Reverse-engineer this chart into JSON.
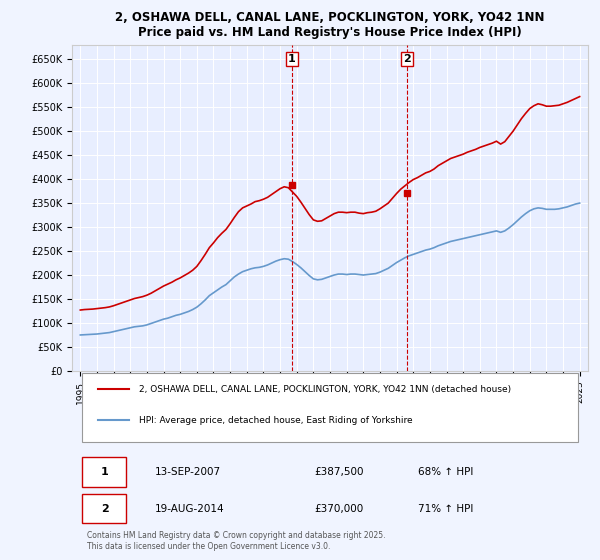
{
  "title": "2, OSHAWA DELL, CANAL LANE, POCKLINGTON, YORK, YO42 1NN",
  "subtitle": "Price paid vs. HM Land Registry's House Price Index (HPI)",
  "background_color": "#f0f4ff",
  "plot_bg_color": "#e8eeff",
  "ylabel": "",
  "ylim": [
    0,
    680000
  ],
  "yticks": [
    0,
    50000,
    100000,
    150000,
    200000,
    250000,
    300000,
    350000,
    400000,
    450000,
    500000,
    550000,
    600000,
    650000
  ],
  "sale1_date": 2007.7,
  "sale1_price": 387500,
  "sale1_label": "1",
  "sale2_date": 2014.63,
  "sale2_price": 370000,
  "sale2_label": "2",
  "legend_property": "2, OSHAWA DELL, CANAL LANE, POCKLINGTON, YORK, YO42 1NN (detached house)",
  "legend_hpi": "HPI: Average price, detached house, East Riding of Yorkshire",
  "table_row1": [
    "1",
    "13-SEP-2007",
    "£387,500",
    "68% ↑ HPI"
  ],
  "table_row2": [
    "2",
    "19-AUG-2014",
    "£370,000",
    "71% ↑ HPI"
  ],
  "footer": "Contains HM Land Registry data © Crown copyright and database right 2025.\nThis data is licensed under the Open Government Licence v3.0.",
  "property_color": "#cc0000",
  "hpi_color": "#6699cc",
  "dashed_line_color": "#cc0000",
  "hpi_data": {
    "years": [
      1995.0,
      1995.25,
      1995.5,
      1995.75,
      1996.0,
      1996.25,
      1996.5,
      1996.75,
      1997.0,
      1997.25,
      1997.5,
      1997.75,
      1998.0,
      1998.25,
      1998.5,
      1998.75,
      1999.0,
      1999.25,
      1999.5,
      1999.75,
      2000.0,
      2000.25,
      2000.5,
      2000.75,
      2001.0,
      2001.25,
      2001.5,
      2001.75,
      2002.0,
      2002.25,
      2002.5,
      2002.75,
      2003.0,
      2003.25,
      2003.5,
      2003.75,
      2004.0,
      2004.25,
      2004.5,
      2004.75,
      2005.0,
      2005.25,
      2005.5,
      2005.75,
      2006.0,
      2006.25,
      2006.5,
      2006.75,
      2007.0,
      2007.25,
      2007.5,
      2007.75,
      2008.0,
      2008.25,
      2008.5,
      2008.75,
      2009.0,
      2009.25,
      2009.5,
      2009.75,
      2010.0,
      2010.25,
      2010.5,
      2010.75,
      2011.0,
      2011.25,
      2011.5,
      2011.75,
      2012.0,
      2012.25,
      2012.5,
      2012.75,
      2013.0,
      2013.25,
      2013.5,
      2013.75,
      2014.0,
      2014.25,
      2014.5,
      2014.75,
      2015.0,
      2015.25,
      2015.5,
      2015.75,
      2016.0,
      2016.25,
      2016.5,
      2016.75,
      2017.0,
      2017.25,
      2017.5,
      2017.75,
      2018.0,
      2018.25,
      2018.5,
      2018.75,
      2019.0,
      2019.25,
      2019.5,
      2019.75,
      2020.0,
      2020.25,
      2020.5,
      2020.75,
      2021.0,
      2021.25,
      2021.5,
      2021.75,
      2022.0,
      2022.25,
      2022.5,
      2022.75,
      2023.0,
      2023.25,
      2023.5,
      2023.75,
      2024.0,
      2024.25,
      2024.5,
      2024.75,
      2025.0
    ],
    "values": [
      75000,
      75500,
      76000,
      76500,
      77000,
      78000,
      79000,
      80000,
      82000,
      84000,
      86000,
      88000,
      90000,
      92000,
      93000,
      94000,
      96000,
      99000,
      102000,
      105000,
      108000,
      110000,
      113000,
      116000,
      118000,
      121000,
      124000,
      128000,
      133000,
      140000,
      148000,
      157000,
      163000,
      169000,
      175000,
      180000,
      188000,
      196000,
      202000,
      207000,
      210000,
      213000,
      215000,
      216000,
      218000,
      221000,
      225000,
      229000,
      232000,
      234000,
      233000,
      228000,
      222000,
      215000,
      207000,
      199000,
      192000,
      190000,
      191000,
      194000,
      197000,
      200000,
      202000,
      202000,
      201000,
      202000,
      202000,
      201000,
      200000,
      201000,
      202000,
      203000,
      206000,
      210000,
      214000,
      220000,
      226000,
      231000,
      236000,
      240000,
      243000,
      246000,
      249000,
      252000,
      254000,
      257000,
      261000,
      264000,
      267000,
      270000,
      272000,
      274000,
      276000,
      278000,
      280000,
      282000,
      284000,
      286000,
      288000,
      290000,
      292000,
      289000,
      292000,
      298000,
      305000,
      313000,
      321000,
      328000,
      334000,
      338000,
      340000,
      339000,
      337000,
      337000,
      337000,
      338000,
      340000,
      342000,
      345000,
      348000,
      350000
    ]
  },
  "property_data": {
    "years": [
      1995.0,
      1995.25,
      1995.5,
      1995.75,
      1996.0,
      1996.25,
      1996.5,
      1996.75,
      1997.0,
      1997.25,
      1997.5,
      1997.75,
      1998.0,
      1998.25,
      1998.5,
      1998.75,
      1999.0,
      1999.25,
      1999.5,
      1999.75,
      2000.0,
      2000.25,
      2000.5,
      2000.75,
      2001.0,
      2001.25,
      2001.5,
      2001.75,
      2002.0,
      2002.25,
      2002.5,
      2002.75,
      2003.0,
      2003.25,
      2003.5,
      2003.75,
      2004.0,
      2004.25,
      2004.5,
      2004.75,
      2005.0,
      2005.25,
      2005.5,
      2005.75,
      2006.0,
      2006.25,
      2006.5,
      2006.75,
      2007.0,
      2007.25,
      2007.5,
      2007.75,
      2008.0,
      2008.25,
      2008.5,
      2008.75,
      2009.0,
      2009.25,
      2009.5,
      2009.75,
      2010.0,
      2010.25,
      2010.5,
      2010.75,
      2011.0,
      2011.25,
      2011.5,
      2011.75,
      2012.0,
      2012.25,
      2012.5,
      2012.75,
      2013.0,
      2013.25,
      2013.5,
      2013.75,
      2014.0,
      2014.25,
      2014.5,
      2014.75,
      2015.0,
      2015.25,
      2015.5,
      2015.75,
      2016.0,
      2016.25,
      2016.5,
      2016.75,
      2017.0,
      2017.25,
      2017.5,
      2017.75,
      2018.0,
      2018.25,
      2018.5,
      2018.75,
      2019.0,
      2019.25,
      2019.5,
      2019.75,
      2020.0,
      2020.25,
      2020.5,
      2020.75,
      2021.0,
      2021.25,
      2021.5,
      2021.75,
      2022.0,
      2022.25,
      2022.5,
      2022.75,
      2023.0,
      2023.25,
      2023.5,
      2023.75,
      2024.0,
      2024.25,
      2024.5,
      2024.75,
      2025.0
    ],
    "values": [
      127000,
      128000,
      128500,
      129000,
      130000,
      131000,
      132000,
      133500,
      136000,
      139000,
      142000,
      145000,
      148000,
      151000,
      153000,
      155000,
      158000,
      162000,
      167000,
      172000,
      177000,
      181000,
      185000,
      190000,
      194000,
      199000,
      204000,
      210000,
      218000,
      230000,
      243000,
      257000,
      267000,
      278000,
      287000,
      295000,
      307000,
      320000,
      332000,
      340000,
      344000,
      348000,
      353000,
      355000,
      358000,
      362000,
      368000,
      374000,
      380000,
      384000,
      382000,
      373000,
      364000,
      352000,
      339000,
      326000,
      315000,
      312000,
      313000,
      318000,
      323000,
      328000,
      331000,
      331000,
      330000,
      331000,
      331000,
      329000,
      328000,
      330000,
      331000,
      333000,
      338000,
      344000,
      350000,
      360000,
      370000,
      379000,
      386000,
      393000,
      399000,
      403000,
      408000,
      413000,
      416000,
      421000,
      428000,
      433000,
      438000,
      443000,
      446000,
      449000,
      452000,
      456000,
      459000,
      462000,
      466000,
      469000,
      472000,
      475000,
      479000,
      473000,
      478000,
      489000,
      500000,
      513000,
      526000,
      537000,
      547000,
      553000,
      557000,
      555000,
      552000,
      552000,
      553000,
      554000,
      557000,
      560000,
      564000,
      568000,
      572000
    ]
  }
}
